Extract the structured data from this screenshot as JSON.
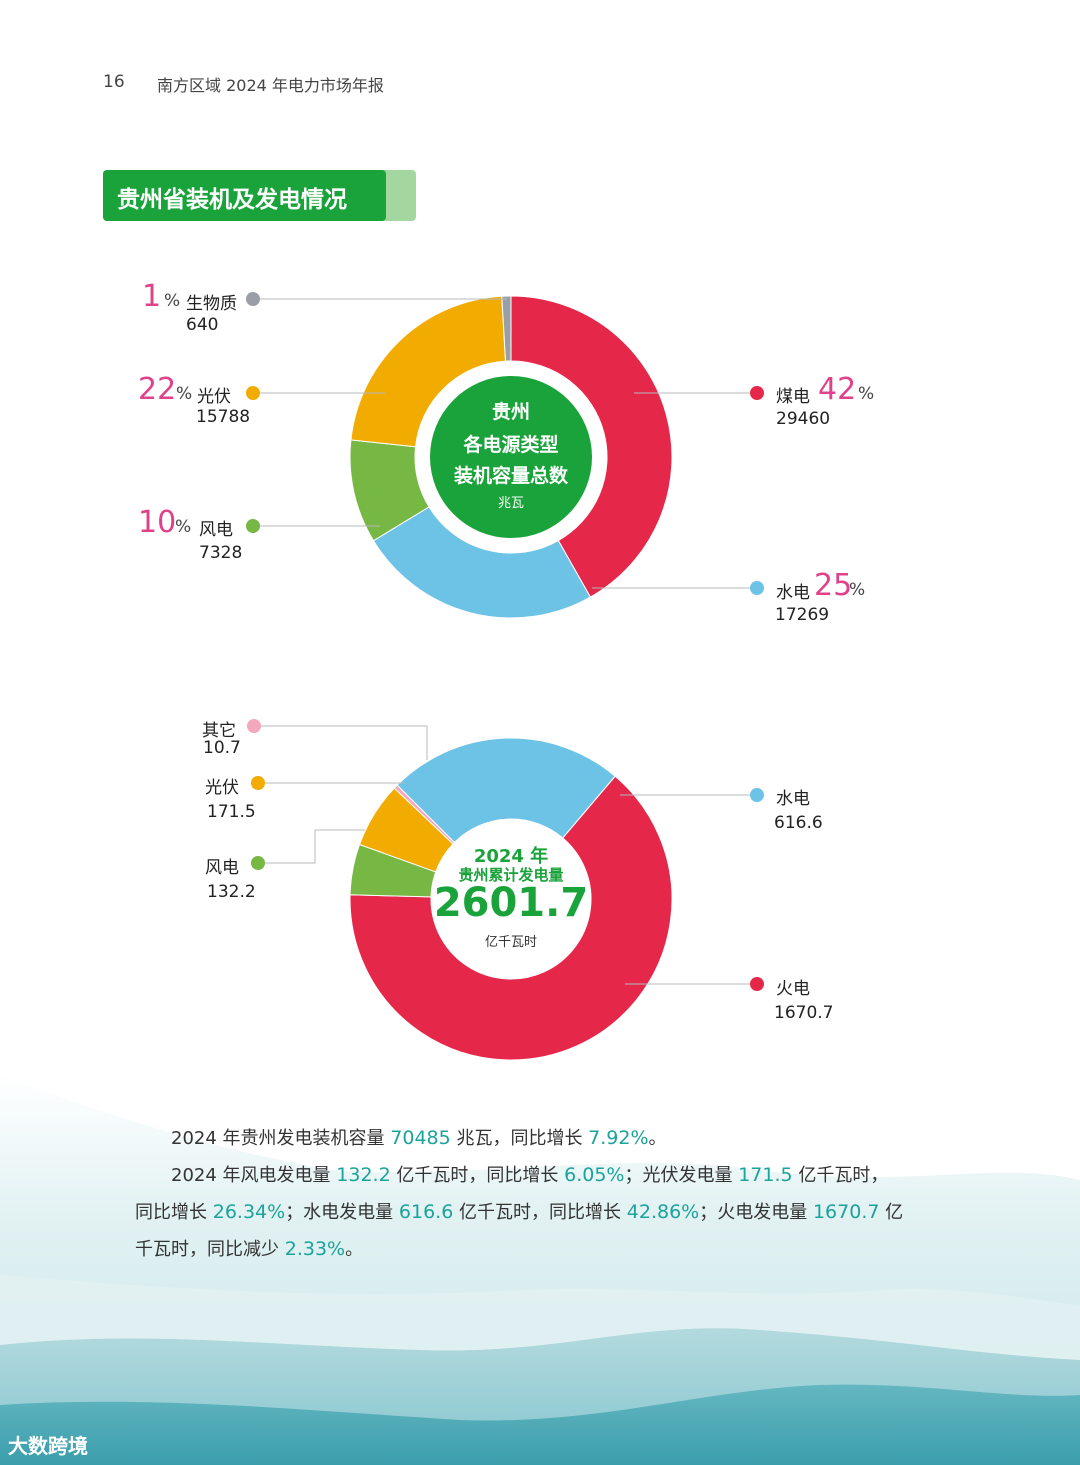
{
  "header": {
    "page_number": "16",
    "running_title": "南方区域 2024 年电力市场年报"
  },
  "section_title": "贵州省装机及发电情况",
  "colors": {
    "coal": "#e5284a",
    "hydro": "#6cc3e6",
    "wind": "#76b843",
    "solar": "#f2ab00",
    "biomass": "#9a9ea6",
    "other": "#f3a9bd",
    "brand_green": "#1aa33a",
    "highlight": "#1aa39a",
    "pct_pink": "#e0418b"
  },
  "chart_data": [
    {
      "type": "pie",
      "center_label": {
        "line1": "贵州",
        "line2": "各电源类型",
        "line3": "装机容量总数",
        "unit": "兆瓦"
      },
      "slices": [
        {
          "name": "煤电",
          "value": 29460,
          "percent": "42"
        },
        {
          "name": "水电",
          "value": 17269,
          "percent": "25"
        },
        {
          "name": "风电",
          "value": 7328,
          "percent": "10"
        },
        {
          "name": "光伏",
          "value": 15788,
          "percent": "22"
        },
        {
          "name": "生物质",
          "value": 640,
          "percent": "1"
        }
      ],
      "percent_sign": "%"
    },
    {
      "type": "pie",
      "center_label": {
        "year": "2024 年",
        "title": "贵州累计发电量",
        "total": "2601.7",
        "unit": "亿千瓦时"
      },
      "slices": [
        {
          "name": "水电",
          "value": 616.6
        },
        {
          "name": "火电",
          "value": 1670.7
        },
        {
          "name": "风电",
          "value": 132.2
        },
        {
          "name": "光伏",
          "value": 171.5
        },
        {
          "name": "其它",
          "value": 10.7
        }
      ]
    }
  ],
  "summary": {
    "p1": {
      "t1": "2024 年贵州发电装机容量 ",
      "v1": "70485",
      "t2": " 兆瓦，同比增长 ",
      "v2": "7.92%",
      "t3": "。"
    },
    "p2": {
      "t1": "2024 年风电发电量 ",
      "v1": "132.2",
      "t2": " 亿千瓦时，同比增长 ",
      "v2": "6.05%",
      "t3": "；光伏发电量 ",
      "v3": "171.5",
      "t4": " 亿千瓦时，同比增长 ",
      "v4": "26.34%",
      "t5": "；水电发电量 ",
      "v5": "616.6",
      "t6": " 亿千瓦时，同比增长 ",
      "v6": "42.86%",
      "t7": "；火电发电量 ",
      "v7": "1670.7",
      "t8": " 亿千瓦时，同比减少 ",
      "v8": "2.33%",
      "t9": "。"
    }
  },
  "watermark": "大数跨境"
}
